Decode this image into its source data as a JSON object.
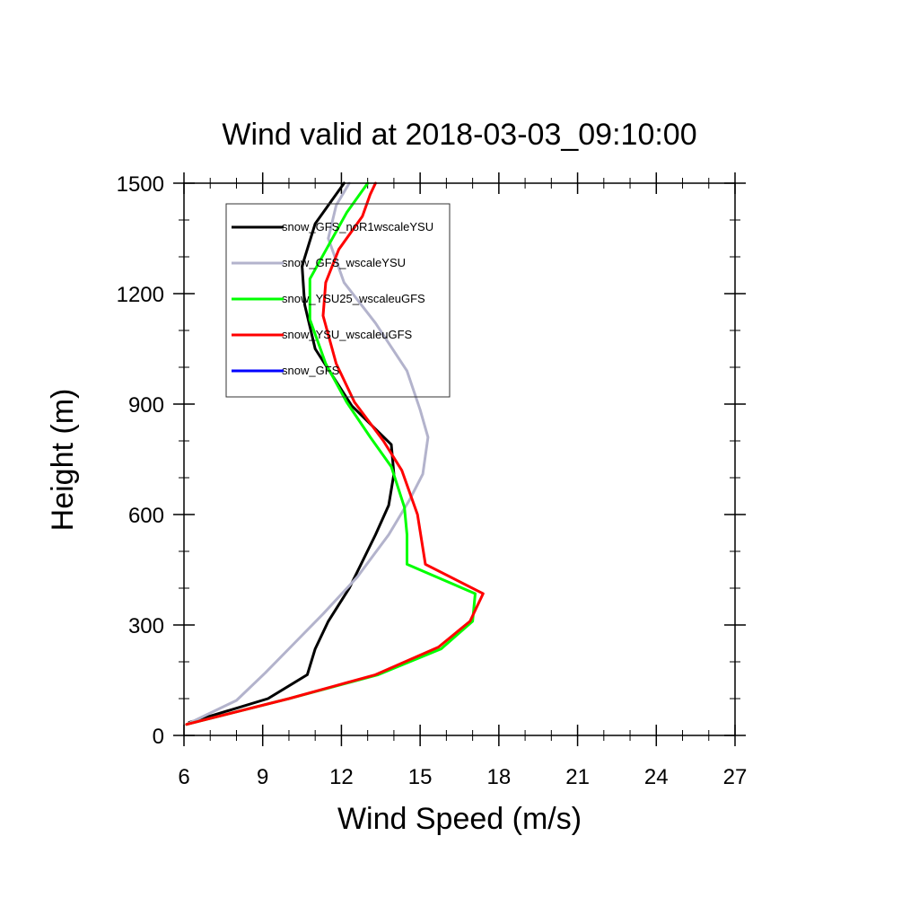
{
  "chart_data": {
    "type": "line",
    "title": "Wind valid at 2018-03-03_09:10:00",
    "xlabel": "Wind Speed (m/s)",
    "ylabel": "Height (m)",
    "xlim": [
      6,
      27
    ],
    "ylim": [
      0,
      1500
    ],
    "xticks": [
      6,
      9,
      12,
      15,
      18,
      21,
      24,
      27
    ],
    "yticks": [
      0,
      300,
      600,
      900,
      1200,
      1500
    ],
    "grid": false,
    "legend_position": "top-left",
    "series": [
      {
        "name": "snow_GFS_noR1wscaleYSU",
        "color": "#000000",
        "points": [
          [
            6.2,
            35
          ],
          [
            9.2,
            100
          ],
          [
            10.7,
            165
          ],
          [
            11.0,
            235
          ],
          [
            11.5,
            310
          ],
          [
            12.3,
            400
          ],
          [
            13.3,
            545
          ],
          [
            13.8,
            625
          ],
          [
            14.0,
            710
          ],
          [
            13.9,
            790
          ],
          [
            12.4,
            895
          ],
          [
            11.0,
            1050
          ],
          [
            10.6,
            1170
          ],
          [
            10.5,
            1275
          ],
          [
            11.0,
            1390
          ],
          [
            12.1,
            1500
          ]
        ]
      },
      {
        "name": "snow_GFS_wscaleYSU",
        "color": "#b3b3cc",
        "points": [
          [
            6.1,
            30
          ],
          [
            8.0,
            95
          ],
          [
            9.1,
            170
          ],
          [
            10.2,
            250
          ],
          [
            11.3,
            330
          ],
          [
            12.6,
            430
          ],
          [
            13.8,
            545
          ],
          [
            14.6,
            640
          ],
          [
            15.1,
            710
          ],
          [
            15.3,
            810
          ],
          [
            15.0,
            885
          ],
          [
            14.5,
            990
          ],
          [
            13.3,
            1120
          ],
          [
            12.1,
            1230
          ],
          [
            11.5,
            1350
          ],
          [
            11.8,
            1440
          ],
          [
            12.3,
            1500
          ]
        ]
      },
      {
        "name": "snow_YSU25_wscaleuGFS",
        "color": "#00ff00",
        "points": [
          [
            6.1,
            30
          ],
          [
            10.0,
            100
          ],
          [
            13.4,
            165
          ],
          [
            15.8,
            235
          ],
          [
            17.0,
            310
          ],
          [
            17.1,
            385
          ],
          [
            14.5,
            465
          ],
          [
            14.5,
            545
          ],
          [
            14.4,
            620
          ],
          [
            13.9,
            730
          ],
          [
            13.1,
            810
          ],
          [
            12.2,
            905
          ],
          [
            11.4,
            1010
          ],
          [
            10.8,
            1130
          ],
          [
            10.8,
            1240
          ],
          [
            11.5,
            1330
          ],
          [
            12.2,
            1420
          ],
          [
            13.0,
            1500
          ]
        ]
      },
      {
        "name": "snow_YSU_wscaleuGFS",
        "color": "#ff0000",
        "points": [
          [
            6.1,
            30
          ],
          [
            10.0,
            100
          ],
          [
            13.3,
            165
          ],
          [
            15.7,
            240
          ],
          [
            16.9,
            310
          ],
          [
            17.4,
            385
          ],
          [
            15.2,
            465
          ],
          [
            14.9,
            600
          ],
          [
            14.3,
            720
          ],
          [
            13.6,
            800
          ],
          [
            12.5,
            905
          ],
          [
            11.8,
            1010
          ],
          [
            11.3,
            1140
          ],
          [
            11.4,
            1230
          ],
          [
            11.9,
            1320
          ],
          [
            12.8,
            1410
          ],
          [
            13.1,
            1470
          ],
          [
            13.3,
            1500
          ]
        ]
      },
      {
        "name": "snow_GFS",
        "color": "#0000ff",
        "points": []
      }
    ]
  }
}
